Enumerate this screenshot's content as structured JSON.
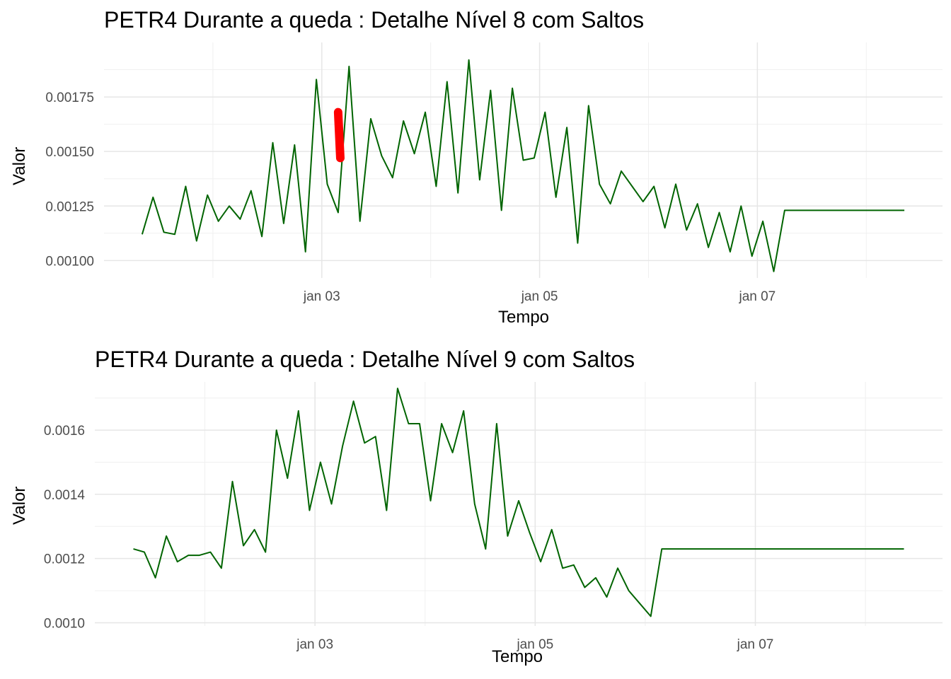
{
  "chart_data": [
    {
      "type": "line",
      "title": "PETR4 Durante a queda : Detalhe Nível 8 com Saltos",
      "xlabel": "Tempo",
      "ylabel": "Valor",
      "x_tick_labels": [
        "jan 03",
        "jan 05",
        "jan 07"
      ],
      "x_ticks_days": [
        2,
        4,
        6
      ],
      "x_range_days": [
        0.0,
        7.7
      ],
      "ylim": [
        0.00092,
        0.002
      ],
      "y_ticks": [
        0.001,
        0.00125,
        0.0015,
        0.00175
      ],
      "y_tick_labels": [
        "0.00100",
        "0.00125",
        "0.00150",
        "0.00175"
      ],
      "grid": true,
      "line_color": "#006400",
      "jump_color": "#ff0000",
      "series": [
        {
          "x_days": [
            0.35,
            0.45,
            0.55,
            0.65,
            0.75,
            0.85,
            0.95,
            1.05,
            1.15,
            1.25,
            1.35,
            1.45,
            1.55,
            1.65,
            1.75,
            1.85,
            1.95,
            2.05,
            2.15,
            2.25,
            2.35,
            2.45,
            2.55,
            2.65,
            2.75,
            2.85,
            2.95,
            3.05,
            3.15,
            3.25,
            3.35,
            3.45,
            3.55,
            3.65,
            3.75,
            3.85,
            3.95,
            4.05,
            4.15,
            4.25,
            4.35,
            4.45,
            4.55,
            4.65,
            4.75,
            4.85,
            4.95,
            5.05,
            5.15,
            5.25,
            5.35,
            5.45,
            5.55,
            5.65,
            5.75,
            5.85,
            5.95,
            6.05,
            6.15,
            6.25,
            6.35,
            6.45,
            6.55,
            6.65,
            6.75,
            6.85,
            6.95,
            7.05,
            7.15,
            7.25,
            7.35
          ],
          "y": [
            0.00112,
            0.00129,
            0.00113,
            0.00112,
            0.00134,
            0.00109,
            0.0013,
            0.00118,
            0.00125,
            0.00119,
            0.00132,
            0.00111,
            0.00154,
            0.00117,
            0.00153,
            0.00104,
            0.00183,
            0.00135,
            0.00122,
            0.00189,
            0.00118,
            0.00165,
            0.00148,
            0.00138,
            0.00164,
            0.00149,
            0.00168,
            0.00134,
            0.00182,
            0.00131,
            0.00192,
            0.00137,
            0.00178,
            0.00123,
            0.00179,
            0.00146,
            0.00147,
            0.00168,
            0.00129,
            0.00161,
            0.00108,
            0.00171,
            0.00135,
            0.00126,
            0.00141,
            0.00134,
            0.00127,
            0.00134,
            0.00115,
            0.00135,
            0.00114,
            0.00126,
            0.00106,
            0.00122,
            0.00104,
            0.00125,
            0.00102,
            0.00118,
            0.00095,
            0.00123,
            0.00123,
            0.00123,
            0.00123,
            0.00123,
            0.00123,
            0.00123,
            0.00123,
            0.00123,
            0.00123,
            0.00123,
            0.00123
          ]
        }
      ],
      "jumps": [
        {
          "x_days": [
            2.15,
            2.17
          ],
          "y": [
            0.00168,
            0.00147
          ]
        }
      ]
    },
    {
      "type": "line",
      "title": "PETR4 Durante a queda : Detalhe Nível 9 com Saltos",
      "xlabel": "Tempo",
      "ylabel": "Valor",
      "x_tick_labels": [
        "jan 03",
        "jan 05",
        "jan 07"
      ],
      "x_ticks_days": [
        2,
        4,
        6
      ],
      "x_range_days": [
        0.0,
        7.7
      ],
      "ylim": [
        0.00099,
        0.00175
      ],
      "y_ticks": [
        0.001,
        0.0012,
        0.0014,
        0.0016
      ],
      "y_tick_labels": [
        "0.0010",
        "0.0012",
        "0.0014",
        "0.0016"
      ],
      "grid": true,
      "line_color": "#006400",
      "series": [
        {
          "x_days": [
            0.35,
            0.45,
            0.55,
            0.65,
            0.75,
            0.85,
            0.95,
            1.05,
            1.15,
            1.25,
            1.35,
            1.45,
            1.55,
            1.65,
            1.75,
            1.85,
            1.95,
            2.05,
            2.15,
            2.25,
            2.35,
            2.45,
            2.55,
            2.65,
            2.75,
            2.85,
            2.95,
            3.05,
            3.15,
            3.25,
            3.35,
            3.45,
            3.55,
            3.65,
            3.75,
            3.85,
            3.95,
            4.05,
            4.15,
            4.25,
            4.35,
            4.45,
            4.55,
            4.65,
            4.75,
            4.85,
            4.95,
            5.05,
            5.15,
            5.25,
            5.35,
            5.45,
            5.55,
            5.65,
            5.75,
            5.85,
            5.95,
            6.05,
            6.15,
            6.25,
            6.35,
            6.45,
            6.55,
            6.65,
            6.75,
            6.85,
            6.95,
            7.05,
            7.15,
            7.25,
            7.35
          ],
          "y": [
            0.00123,
            0.00122,
            0.00114,
            0.00127,
            0.00119,
            0.00121,
            0.00121,
            0.00122,
            0.00117,
            0.00144,
            0.00124,
            0.00129,
            0.00122,
            0.0016,
            0.00145,
            0.00166,
            0.00135,
            0.0015,
            0.00137,
            0.00155,
            0.00169,
            0.00156,
            0.00158,
            0.00135,
            0.00173,
            0.00162,
            0.00162,
            0.00138,
            0.00162,
            0.00153,
            0.00166,
            0.00137,
            0.00123,
            0.00162,
            0.00127,
            0.00138,
            0.00128,
            0.00119,
            0.00129,
            0.00117,
            0.00118,
            0.00111,
            0.00114,
            0.00108,
            0.00117,
            0.0011,
            0.00106,
            0.00102,
            0.00123,
            0.00123,
            0.00123,
            0.00123,
            0.00123,
            0.00123,
            0.00123,
            0.00123,
            0.00123,
            0.00123,
            0.00123,
            0.00123,
            0.00123,
            0.00123,
            0.00123,
            0.00123,
            0.00123,
            0.00123,
            0.00123,
            0.00123,
            0.00123,
            0.00123,
            0.00123
          ]
        }
      ]
    }
  ]
}
